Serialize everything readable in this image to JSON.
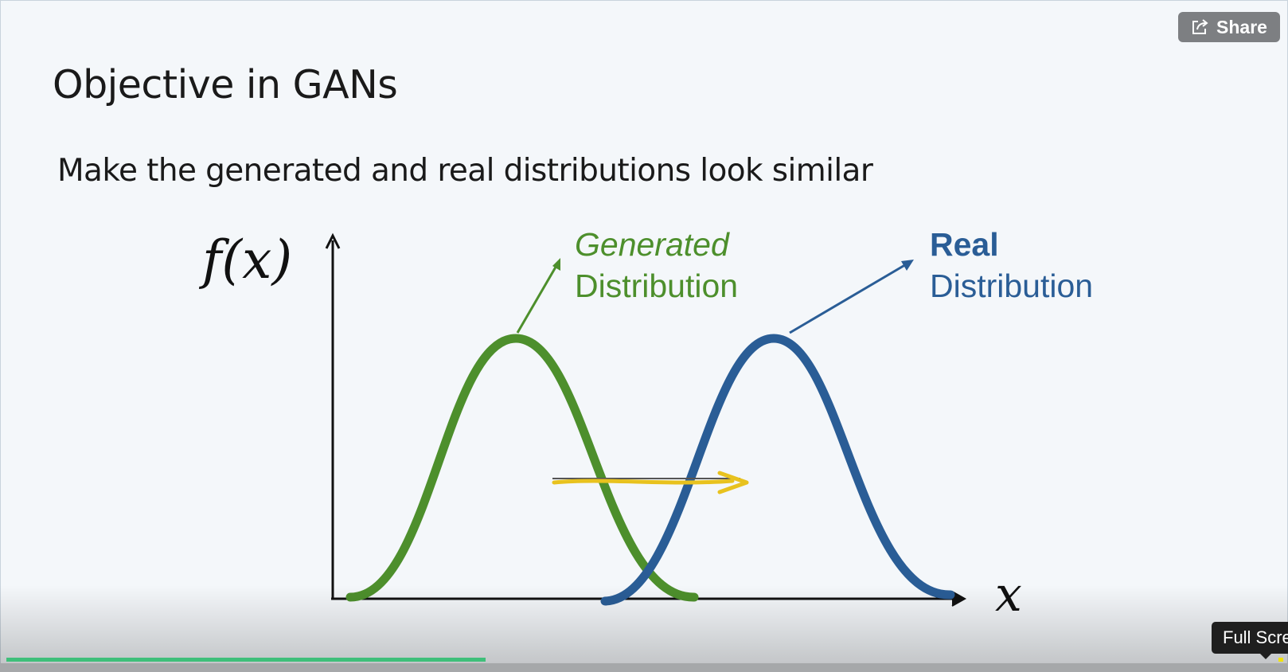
{
  "slide": {
    "title": "Objective in GANs",
    "subtitle": "Make the generated and real distributions look similar",
    "y_axis_label": "f(x)",
    "x_axis_label": "x",
    "generated_label_1": "Generated",
    "generated_label_2": "Distribution",
    "real_label_1": "Real",
    "real_label_2": "Distribution"
  },
  "share_button": {
    "label": "Share",
    "icon": "share-icon"
  },
  "player": {
    "progress_fraction": 0.376,
    "tooltip": "Full Scre"
  },
  "colors": {
    "generated": "#4d8f2c",
    "real": "#2a5d96",
    "arrow": "#e8c21e",
    "progress": "#3fbf7a"
  }
}
